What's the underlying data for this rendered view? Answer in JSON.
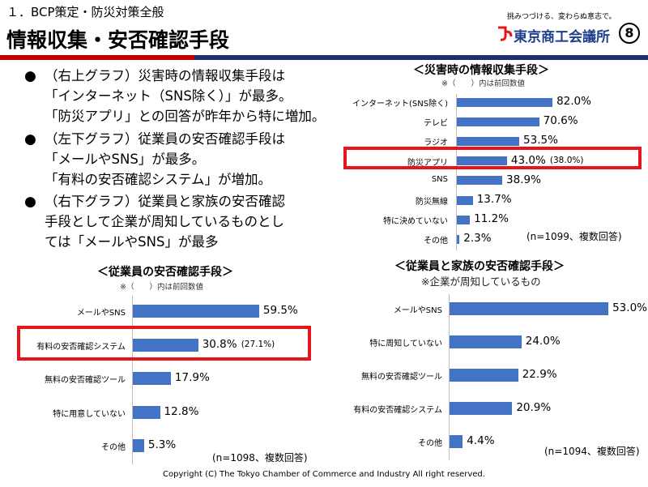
{
  "header": {
    "section": "１．BCP策定・防災対策全般",
    "title": "情報収集・安否確認手段",
    "tagline": "挑みつづける、変わらぬ意志で。",
    "org_name": "東京商工会議所",
    "page_number": "⑧",
    "colors": {
      "red": "#c00000",
      "navy": "#1f2f6b",
      "brand_blue": "#1f3e8a"
    }
  },
  "bullets": [
    {
      "lines": [
        "（右上グラフ）災害時の情報収集手段は",
        "「インターネット（SNS除く）」が最多。",
        "「防災アプリ」との回答が昨年から特に増加。"
      ]
    },
    {
      "lines": [
        "（左下グラフ）従業員の安否確認手段は",
        "「メールやSNS」が最多。",
        "「有料の安否確認システム」が増加。"
      ]
    },
    {
      "lines": [
        "（右下グラフ）従業員と家族の安否確認",
        "手段として企業が周知しているものとし",
        "ては「メールやSNS」が最多"
      ]
    }
  ],
  "bullet_marker": "●",
  "chart_data": [
    {
      "type": "bar",
      "orientation": "horizontal",
      "title": "＜災害時の情報収集手段＞",
      "note": "※（　　）内は前回数値",
      "sample_note": "(n=1099、複数回答)",
      "categories": [
        "インターネット(SNS除く)",
        "テレビ",
        "ラジオ",
        "防災アプリ",
        "SNS",
        "防災無線",
        "特に決めていない",
        "その他"
      ],
      "values": [
        82.0,
        70.6,
        53.5,
        43.0,
        38.9,
        13.7,
        11.2,
        2.3
      ],
      "value_labels": [
        "82.0%",
        "70.6%",
        "53.5%",
        "43.0%",
        "38.9%",
        "13.7%",
        "11.2%",
        "2.3%"
      ],
      "previous": {
        "3": "(38.0%)"
      },
      "highlight_index": 3,
      "color": "#4472c4",
      "highlight_color": "#e8141b"
    },
    {
      "type": "bar",
      "orientation": "horizontal",
      "title": "＜従業員の安否確認手段＞",
      "note": "※（　　）内は前回数値",
      "sample_note": "(n=1098、複数回答)",
      "categories": [
        "メールやSNS",
        "有料の安否確認システム",
        "無料の安否確認ツール",
        "特に用意していない",
        "その他"
      ],
      "values": [
        59.5,
        30.8,
        17.9,
        12.8,
        5.3
      ],
      "value_labels": [
        "59.5%",
        "30.8%",
        "17.9%",
        "12.8%",
        "5.3%"
      ],
      "previous": {
        "1": "(27.1%)"
      },
      "highlight_index": 1,
      "color": "#4472c4",
      "highlight_color": "#e8141b"
    },
    {
      "type": "bar",
      "orientation": "horizontal",
      "title": "＜従業員と家族の安否確認手段＞",
      "note": "※企業が周知しているもの",
      "sample_note": "(n=1094、複数回答)",
      "categories": [
        "メールやSNS",
        "特に周知していない",
        "無料の安否確認ツール",
        "有料の安否確認システム",
        "その他"
      ],
      "values": [
        53.0,
        24.0,
        22.9,
        20.9,
        4.4
      ],
      "value_labels": [
        "53.0%",
        "24.0%",
        "22.9%",
        "20.9%",
        "4.4%"
      ],
      "previous": {},
      "highlight_index": null,
      "color": "#4472c4",
      "highlight_color": "#e8141b"
    }
  ],
  "footer": {
    "copyright": "Copyright (C)  The Tokyo Chamber of Commerce and Industry All right reserved."
  }
}
